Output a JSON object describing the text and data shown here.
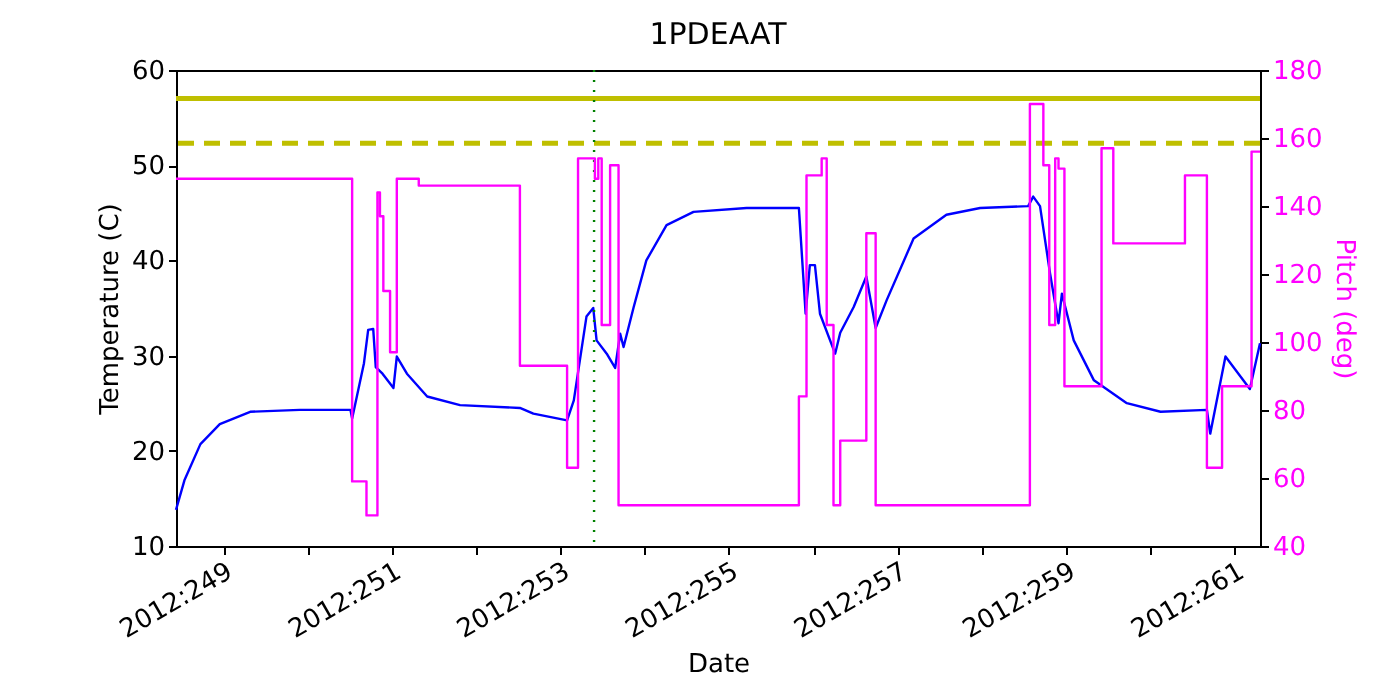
{
  "chart_data": {
    "type": "line",
    "title": "1PDEAAT",
    "xlabel": "Date",
    "ylabel": "Temperature (C)",
    "y2label": "Pitch (deg)",
    "xlim": [
      "2012-09-04T10:34",
      "2012-09-17T07:12"
    ],
    "xticks": [
      {
        "value": "2012-09-05",
        "label": "2012:249"
      },
      {
        "value": "2012-09-06",
        "label": null
      },
      {
        "value": "2012-09-07",
        "label": "2012:251"
      },
      {
        "value": "2012-09-08",
        "label": null
      },
      {
        "value": "2012-09-09",
        "label": "2012:253"
      },
      {
        "value": "2012-09-10",
        "label": null
      },
      {
        "value": "2012-09-11",
        "label": "2012:255"
      },
      {
        "value": "2012-09-12",
        "label": null
      },
      {
        "value": "2012-09-13",
        "label": "2012:257"
      },
      {
        "value": "2012-09-14",
        "label": null
      },
      {
        "value": "2012-09-15",
        "label": "2012:259"
      },
      {
        "value": "2012-09-16",
        "label": null
      },
      {
        "value": "2012-09-17",
        "label": "2012:261"
      }
    ],
    "ylim": [
      10,
      60
    ],
    "yticks": [
      10,
      20,
      30,
      40,
      50,
      60
    ],
    "y2lim": [
      40,
      180
    ],
    "y2ticks": [
      40,
      60,
      80,
      100,
      120,
      140,
      160,
      180
    ],
    "grid": false,
    "series": [
      {
        "type": "line",
        "color": "#0000ff",
        "x": [
          "2012-09-04T10:34",
          "2012-09-04T12:58",
          "2012-09-04T17:31",
          "2012-09-04T23:02",
          "2012-09-05T07:41",
          "2012-09-05T21:50",
          "2012-09-06T12:14",
          "2012-09-06T12:43",
          "2012-09-06T16:05",
          "2012-09-06T17:17",
          "2012-09-06T18:43",
          "2012-09-06T19:26",
          "2012-09-06T21:22",
          "2012-09-07T00:29",
          "2012-09-07T01:26",
          "2012-09-07T04:19",
          "2012-09-07T10:05",
          "2012-09-07T19:26",
          "2012-09-08T12:29",
          "2012-09-08T16:19",
          "2012-09-09T01:55",
          "2012-09-09T03:50",
          "2012-09-09T07:26",
          "2012-09-09T09:22",
          "2012-09-09T10:19",
          "2012-09-09T13:12",
          "2012-09-09T15:36",
          "2012-09-09T17:02",
          "2012-09-09T18:00",
          "2012-09-09T20:53",
          "2012-09-10T00:29",
          "2012-09-10T06:14",
          "2012-09-10T13:55",
          "2012-09-11T05:02",
          "2012-09-11T19:55",
          "2012-09-11T21:50",
          "2012-09-11T23:02",
          "2012-09-12T00:29",
          "2012-09-12T01:55",
          "2012-09-12T06:14",
          "2012-09-12T07:41",
          "2012-09-12T11:31",
          "2012-09-12T15:07",
          "2012-09-12T17:46",
          "2012-09-12T20:53",
          "2012-09-13T04:34",
          "2012-09-13T13:55",
          "2012-09-13T23:31",
          "2012-09-14T13:12",
          "2012-09-14T14:38",
          "2012-09-14T16:34",
          "2012-09-14T19:26",
          "2012-09-14T21:50",
          "2012-09-14T22:48",
          "2012-09-15T02:10",
          "2012-09-15T07:55",
          "2012-09-15T17:17",
          "2012-09-16T02:53",
          "2012-09-16T16:05",
          "2012-09-16T17:02",
          "2012-09-16T21:22",
          "2012-09-17T04:19",
          "2012-09-17T07:12"
        ],
        "values": [
          13.8,
          16.9,
          20.7,
          22.8,
          24.1,
          24.3,
          24.3,
          23.4,
          29.2,
          32.7,
          32.8,
          28.8,
          28.1,
          26.6,
          29.9,
          28.1,
          25.7,
          24.8,
          24.5,
          23.9,
          23.2,
          25.3,
          34.1,
          35.0,
          31.6,
          30.2,
          28.7,
          32.3,
          30.9,
          35.1,
          40.0,
          43.7,
          45.1,
          45.5,
          45.5,
          34.4,
          39.5,
          39.5,
          34.4,
          30.2,
          32.4,
          35.1,
          38.3,
          32.9,
          35.8,
          42.3,
          44.8,
          45.5,
          45.7,
          46.7,
          45.7,
          38.6,
          33.4,
          36.5,
          31.6,
          27.4,
          25.0,
          24.1,
          24.3,
          21.8,
          29.9,
          26.5,
          31.3
        ]
      },
      {
        "type": "step",
        "axis": "y2",
        "color": "#ff00ff",
        "x": [
          "2012-09-04T10:34",
          "2012-09-06T12:43",
          "2012-09-06T16:48",
          "2012-09-06T19:55",
          "2012-09-06T20:38",
          "2012-09-06T21:36",
          "2012-09-06T23:31",
          "2012-09-07T01:26",
          "2012-09-07T07:41",
          "2012-09-08T12:29",
          "2012-09-09T01:55",
          "2012-09-09T05:02",
          "2012-09-09T09:50",
          "2012-09-09T10:48",
          "2012-09-09T11:46",
          "2012-09-09T14:10",
          "2012-09-09T16:34",
          "2012-09-11T19:55",
          "2012-09-11T22:05",
          "2012-09-12T02:24",
          "2012-09-12T03:50",
          "2012-09-12T05:46",
          "2012-09-12T07:41",
          "2012-09-12T15:07",
          "2012-09-12T17:46",
          "2012-09-14T13:41",
          "2012-09-14T17:31",
          "2012-09-14T19:12",
          "2012-09-14T20:53",
          "2012-09-14T21:50",
          "2012-09-14T23:31",
          "2012-09-15T10:05",
          "2012-09-15T13:26",
          "2012-09-16T09:50",
          "2012-09-16T16:05",
          "2012-09-16T20:24",
          "2012-09-17T04:48",
          "2012-09-17T07:12"
        ],
        "values": [
          148,
          59,
          49,
          144,
          137,
          115,
          97,
          148,
          146,
          93,
          63,
          154,
          148,
          154,
          105,
          152,
          52,
          84,
          149,
          154,
          105,
          52,
          71,
          132,
          52,
          170,
          152,
          105,
          154,
          151,
          87,
          157,
          129,
          149,
          63,
          87,
          156,
          156
        ]
      }
    ],
    "ref_lines": [
      {
        "axis": "y",
        "value": 57,
        "color": "#bfbf00",
        "line_style": "solid"
      },
      {
        "axis": "y",
        "value": 52.3,
        "color": "#bfbf00",
        "line_style": "dashed"
      },
      {
        "axis": "x",
        "value": "2012-09-09T09:36",
        "color": "#008000",
        "line_style": "dotted"
      }
    ]
  }
}
